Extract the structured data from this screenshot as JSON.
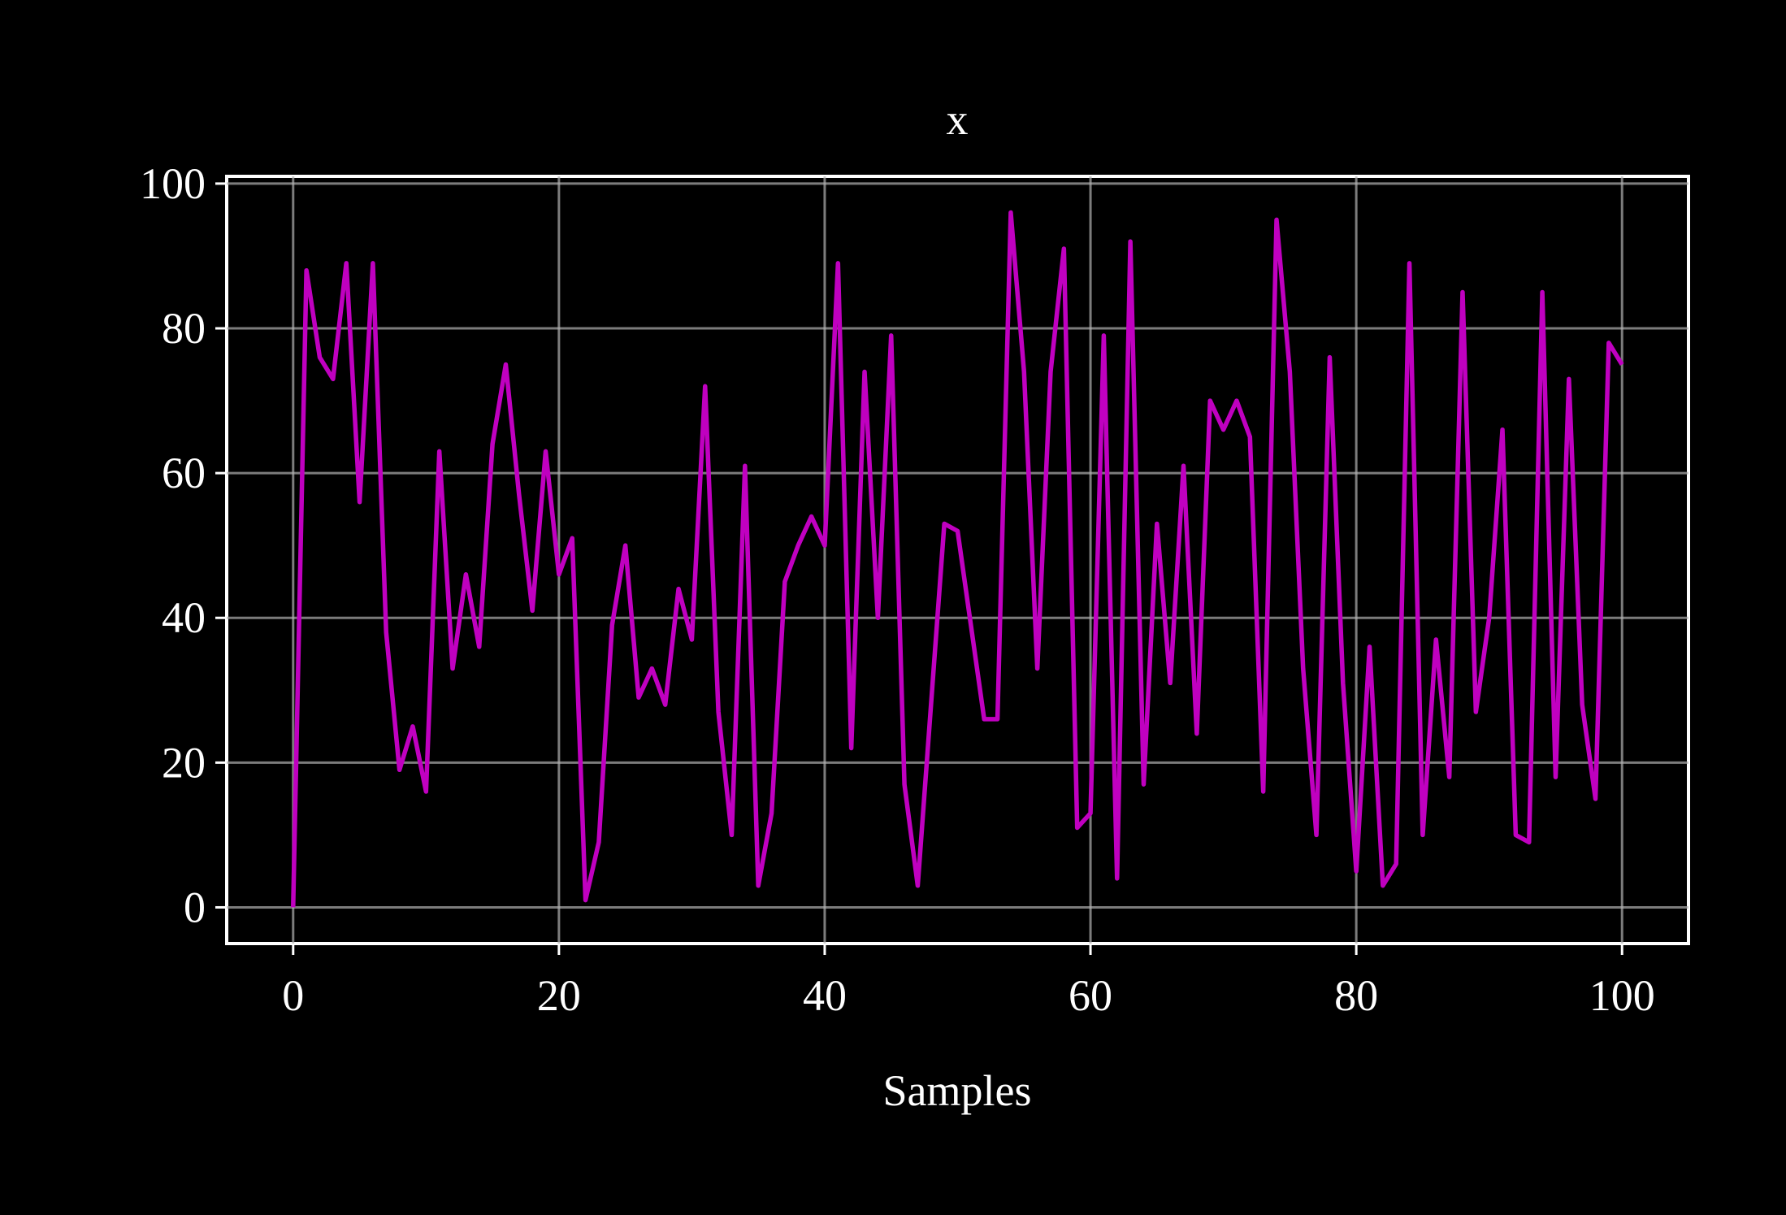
{
  "chart_data": {
    "type": "line",
    "title": "x",
    "xlabel": "Samples",
    "ylabel": "",
    "xlim": [
      -5,
      105
    ],
    "ylim": [
      -5,
      101
    ],
    "xticks": [
      0,
      20,
      40,
      60,
      80,
      100
    ],
    "yticks": [
      0,
      20,
      40,
      60,
      80,
      100
    ],
    "xtick_labels": [
      "0",
      "20",
      "40",
      "60",
      "80",
      "100"
    ],
    "ytick_labels": [
      "0",
      "20",
      "40",
      "60",
      "80",
      "100"
    ],
    "grid": true,
    "background": "#000000",
    "series": [
      {
        "color": "#c000c0",
        "x": [
          0,
          1,
          2,
          3,
          4,
          5,
          6,
          7,
          8,
          9,
          10,
          11,
          12,
          13,
          14,
          15,
          16,
          17,
          18,
          19,
          20,
          21,
          22,
          23,
          24,
          25,
          26,
          27,
          28,
          29,
          30,
          31,
          32,
          33,
          34,
          35,
          36,
          37,
          38,
          39,
          40,
          41,
          42,
          43,
          44,
          45,
          46,
          47,
          48,
          49,
          50,
          51,
          52,
          53,
          54,
          55,
          56,
          57,
          58,
          59,
          60,
          61,
          62,
          63,
          64,
          65,
          66,
          67,
          68,
          69,
          70,
          71,
          72,
          73,
          74,
          75,
          76,
          77,
          78,
          79,
          80,
          81,
          82,
          83,
          84,
          85,
          86,
          87,
          88,
          89,
          90,
          91,
          92,
          93,
          94,
          95,
          96,
          97,
          98,
          99,
          100
        ],
        "values": [
          0,
          88,
          76,
          73,
          89,
          56,
          89,
          38,
          19,
          25,
          16,
          63,
          33,
          46,
          36,
          64,
          75,
          57,
          41,
          63,
          46,
          51,
          1,
          9,
          39,
          50,
          29,
          33,
          28,
          44,
          37,
          72,
          27,
          10,
          61,
          3,
          13,
          45,
          50,
          54,
          50,
          89,
          22,
          74,
          40,
          79,
          17,
          3,
          28,
          53,
          52,
          39,
          26,
          26,
          96,
          74,
          33,
          74,
          91,
          11,
          13,
          79,
          4,
          92,
          17,
          53,
          31,
          61,
          24,
          70,
          66,
          70,
          65,
          16,
          95,
          74,
          33,
          10,
          76,
          31,
          5,
          36,
          3,
          6,
          89,
          10,
          37,
          18,
          85,
          27,
          40,
          66,
          10,
          9,
          85,
          18,
          73,
          28,
          15,
          78,
          75
        ]
      }
    ]
  }
}
